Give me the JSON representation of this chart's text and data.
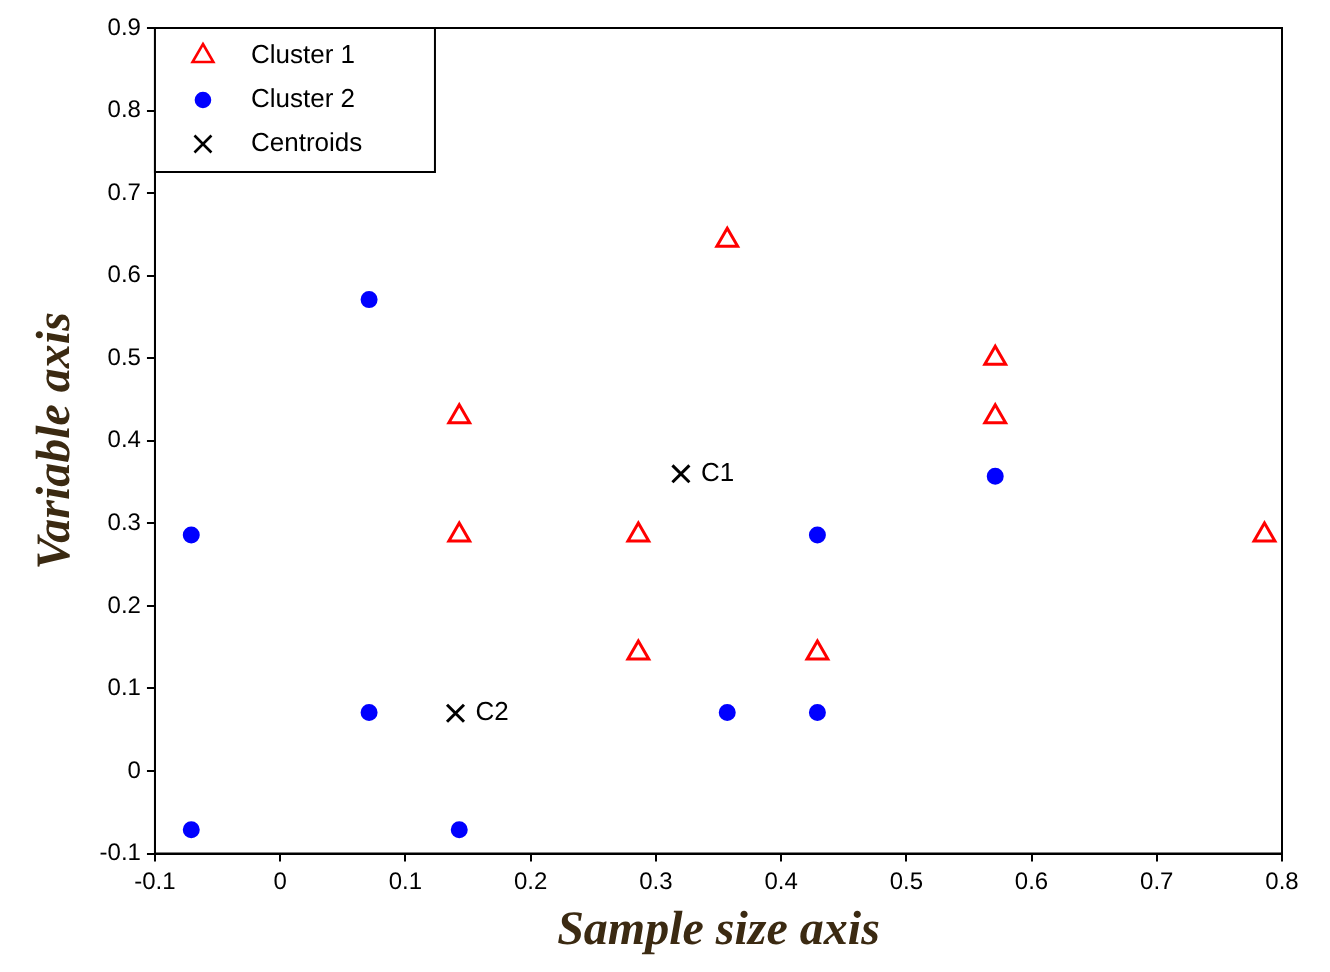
{
  "chart_data": {
    "type": "scatter",
    "xlabel": "Sample size axis",
    "ylabel": "Variable axis",
    "xlim": [
      -0.1,
      0.8
    ],
    "xticks": [
      -0.1,
      0,
      0.1,
      0.2,
      0.3,
      0.4,
      0.5,
      0.6,
      0.7,
      0.8
    ],
    "ylim": [
      -0.1,
      0.9
    ],
    "yticks": [
      -0.1,
      0,
      0.1,
      0.2,
      0.3,
      0.4,
      0.5,
      0.6,
      0.7,
      0.8,
      0.9
    ],
    "grid": false,
    "legend": "top left",
    "series": [
      {
        "name": "Cluster 1",
        "color": "#ff0000",
        "marker": "triangle",
        "x": [
          0.143,
          0.143,
          0.286,
          0.286,
          0.429,
          0.357,
          0.571,
          0.571,
          0.786
        ],
        "values": [
          0.429,
          0.286,
          0.286,
          0.143,
          0.143,
          0.643,
          0.5,
          0.429,
          0.286
        ]
      },
      {
        "name": "Cluster 2",
        "color": "#0000ff",
        "marker": "circle",
        "x": [
          -0.071,
          0.071,
          -0.071,
          0.071,
          0.143,
          0.357,
          0.429,
          0.429,
          0.571
        ],
        "values": [
          0.286,
          0.571,
          -0.071,
          0.071,
          -0.071,
          0.071,
          0.071,
          0.286,
          0.357
        ]
      },
      {
        "name": "Centroids",
        "color": "#000000",
        "marker": "cross",
        "x": [
          0.32,
          0.14
        ],
        "values": [
          0.36,
          0.07
        ]
      }
    ],
    "annotations": [
      {
        "text": "C1",
        "x": 0.32,
        "y": 0.36
      },
      {
        "text": "C2",
        "x": 0.14,
        "y": 0.07
      }
    ]
  }
}
